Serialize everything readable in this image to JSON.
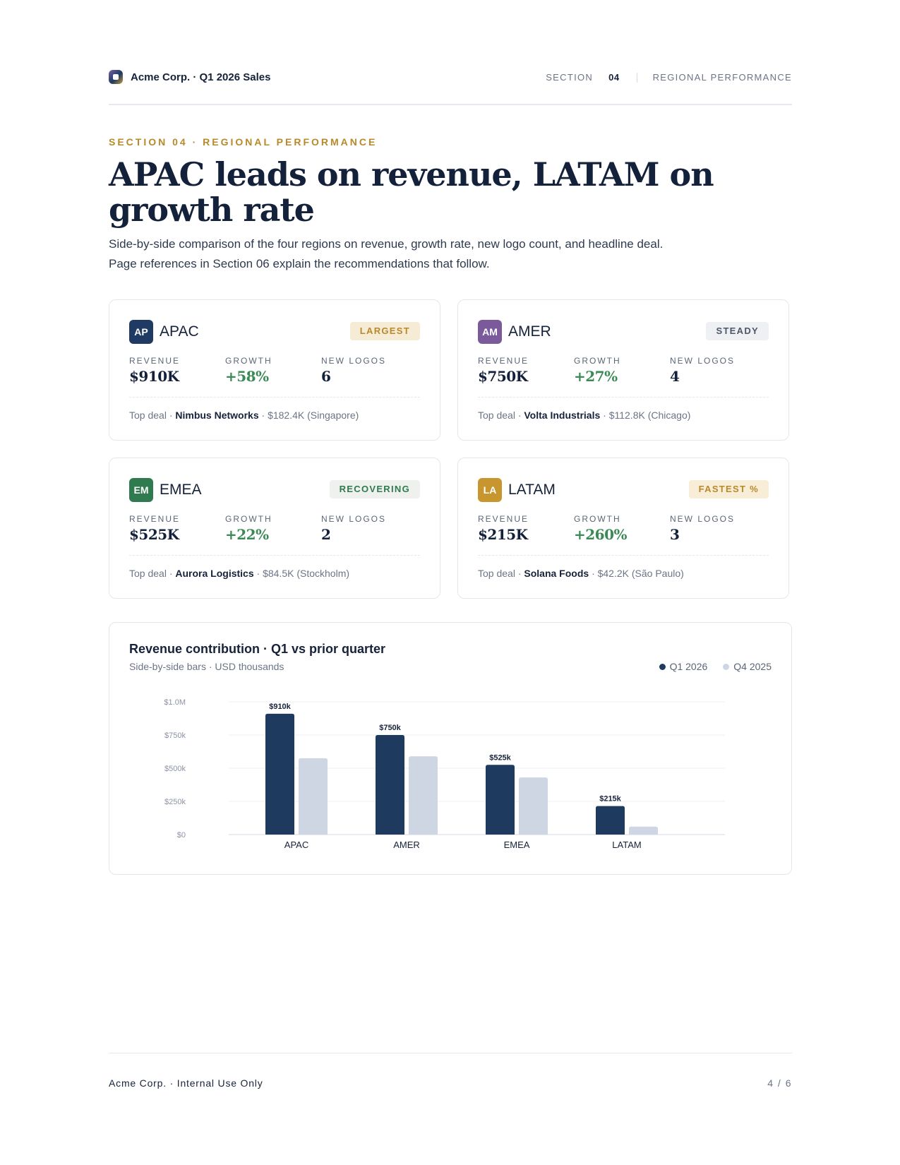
{
  "header": {
    "brand": "Acme Corp. · Q1 2026 Sales",
    "section_label": "SECTION",
    "section_number": "04",
    "section_name": "REGIONAL PERFORMANCE"
  },
  "eyebrow": "SECTION 04 · REGIONAL PERFORMANCE",
  "headline": "APAC leads on revenue, LATAM on growth rate",
  "lede": "Side-by-side comparison of the four regions on revenue, growth rate, new logo count, and headline deal. Page references in Section 06 explain the recommendations that follow.",
  "labels": {
    "revenue": "REVENUE",
    "growth": "GROWTH",
    "new_logos": "NEW LOGOS",
    "top_deal": "Top deal ·"
  },
  "regions": [
    {
      "initials": "AP",
      "name": "APAC",
      "tag": "LARGEST",
      "revenue": "$910K",
      "growth": "+58%",
      "new_logos": "6",
      "deal_company": "Nimbus Networks",
      "deal_detail": "· $182.4K (Singapore)",
      "color": "#1f3a63",
      "tag_bg": "#f6ecd6",
      "tag_fg": "#b8892a"
    },
    {
      "initials": "AM",
      "name": "AMER",
      "tag": "STEADY",
      "revenue": "$750K",
      "growth": "+27%",
      "new_logos": "4",
      "deal_company": "Volta Industrials",
      "deal_detail": "· $112.8K (Chicago)",
      "color": "#7a5a9a",
      "tag_bg": "#eef0f4",
      "tag_fg": "#4d5768"
    },
    {
      "initials": "EM",
      "name": "EMEA",
      "tag": "RECOVERING",
      "revenue": "$525K",
      "growth": "+22%",
      "new_logos": "2",
      "deal_company": "Aurora Logistics",
      "deal_detail": "· $84.5K (Stockholm)",
      "color": "#2f7a4f",
      "tag_bg": "#eef1ee",
      "tag_fg": "#2f7a4f"
    },
    {
      "initials": "LA",
      "name": "LATAM",
      "tag": "FASTEST %",
      "revenue": "$215K",
      "growth": "+260%",
      "new_logos": "3",
      "deal_company": "Solana Foods",
      "deal_detail": "· $42.2K (São Paulo)",
      "color": "#c8962e",
      "tag_bg": "#f8edd6",
      "tag_fg": "#b8892a"
    }
  ],
  "chart": {
    "title": "Revenue contribution · Q1 vs prior quarter",
    "subtitle": "Side-by-side bars · USD thousands",
    "legend": [
      {
        "label": "Q1 2026",
        "color": "#1f3a5f"
      },
      {
        "label": "Q4 2025",
        "color": "#cfd6e3"
      }
    ]
  },
  "chart_data": {
    "type": "bar",
    "categories": [
      "APAC",
      "AMER",
      "EMEA",
      "LATAM"
    ],
    "series": [
      {
        "name": "Q1 2026",
        "values": [
          910,
          750,
          525,
          215
        ],
        "labels": [
          "$910k",
          "$750k",
          "$525k",
          "$215k"
        ],
        "color": "#1f3a5f"
      },
      {
        "name": "Q4 2025",
        "values": [
          575,
          590,
          430,
          60
        ],
        "color": "#cfd6e3"
      }
    ],
    "yticks": [
      0,
      250,
      500,
      750,
      1000
    ],
    "ytick_labels": [
      "$0",
      "$250k",
      "$500k",
      "$750k",
      "$1.0M"
    ],
    "ylim": [
      0,
      1000
    ],
    "grid": true,
    "legend_position": "top-right"
  },
  "footer": {
    "left": "Acme Corp. · Internal Use Only",
    "right": "4 / 6"
  }
}
